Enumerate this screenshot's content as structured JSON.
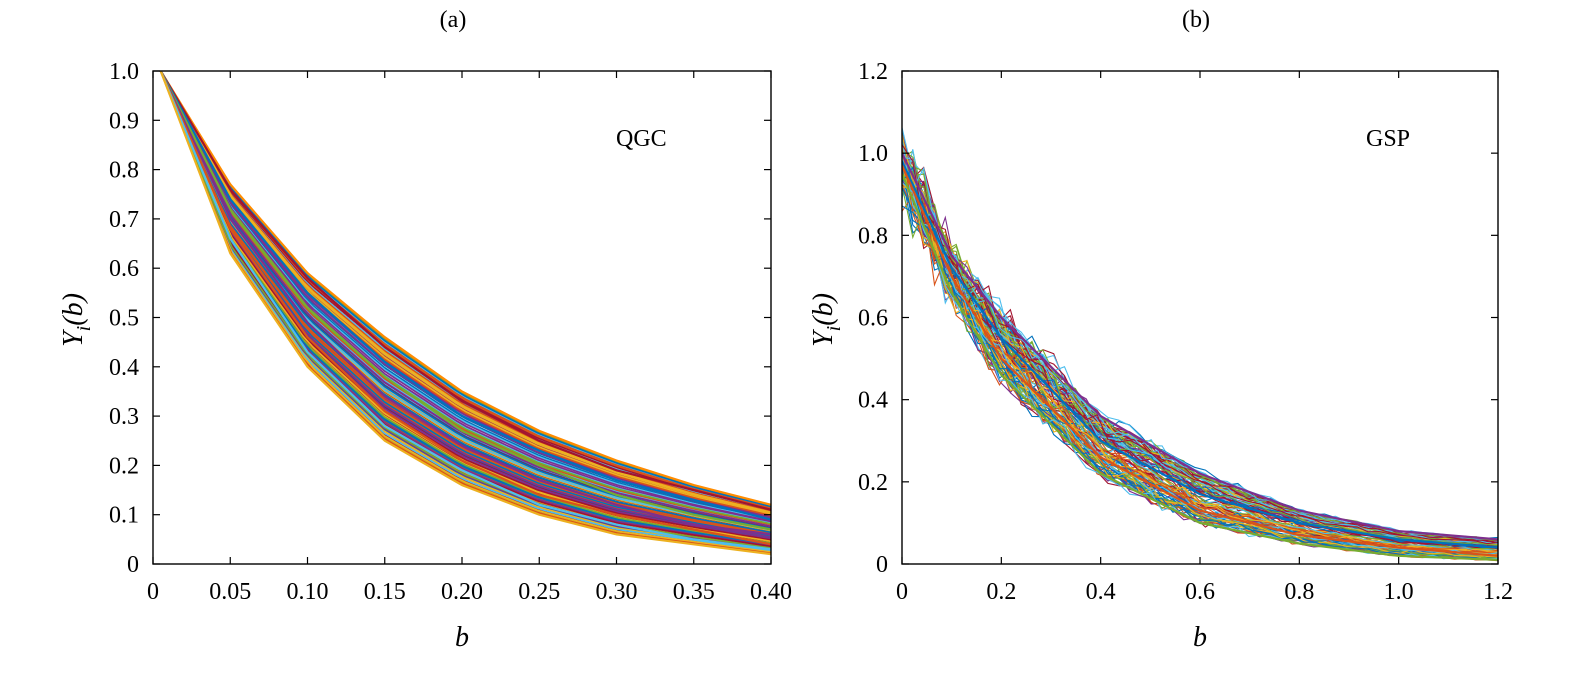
{
  "chart_data": [
    {
      "type": "line",
      "title": "(a)",
      "annotation": "QGC",
      "xlabel": "b",
      "ylabel_main": "Y",
      "ylabel_sub": "i",
      "ylabel_rest": "(b)",
      "xlim": [
        0,
        0.4
      ],
      "ylim": [
        0,
        1.0
      ],
      "x_ticks": [
        0,
        0.05,
        0.1,
        0.15,
        0.2,
        0.25,
        0.3,
        0.35,
        0.4
      ],
      "x_tick_labels": [
        "0",
        "0.05",
        "0.10",
        "0.15",
        "0.20",
        "0.25",
        "0.30",
        "0.35",
        "0.40"
      ],
      "y_ticks": [
        0,
        0.1,
        0.2,
        0.3,
        0.4,
        0.5,
        0.6,
        0.7,
        0.8,
        0.9,
        1.0
      ],
      "y_tick_labels": [
        "0",
        "0.1",
        "0.2",
        "0.3",
        "0.4",
        "0.5",
        "0.6",
        "0.7",
        "0.8",
        "0.9",
        "1.0"
      ],
      "grid": false,
      "curve_family": "exponential decay Y = exp(-b/tau), many realizations",
      "x": [
        0.005,
        0.05,
        0.1,
        0.15,
        0.2,
        0.25,
        0.3,
        0.35,
        0.4
      ],
      "series": [
        {
          "values": [
            1.0,
            0.77,
            0.59,
            0.46,
            0.35,
            0.27,
            0.21,
            0.16,
            0.12
          ],
          "color": "#ff8c00"
        },
        {
          "values": [
            1.0,
            0.76,
            0.58,
            0.44,
            0.33,
            0.25,
            0.19,
            0.15,
            0.11
          ],
          "color": "#a2142f"
        },
        {
          "values": [
            1.0,
            0.74,
            0.55,
            0.41,
            0.3,
            0.23,
            0.17,
            0.13,
            0.09
          ],
          "color": "#0072bd"
        },
        {
          "values": [
            1.0,
            0.72,
            0.52,
            0.38,
            0.27,
            0.2,
            0.14,
            0.1,
            0.07
          ],
          "color": "#77ac30"
        },
        {
          "values": [
            1.0,
            0.7,
            0.49,
            0.34,
            0.24,
            0.17,
            0.12,
            0.08,
            0.06
          ],
          "color": "#7e2f8e"
        },
        {
          "values": [
            1.0,
            0.68,
            0.46,
            0.31,
            0.21,
            0.14,
            0.1,
            0.07,
            0.04
          ],
          "color": "#d95319"
        },
        {
          "values": [
            1.0,
            0.66,
            0.43,
            0.28,
            0.19,
            0.12,
            0.08,
            0.05,
            0.03
          ],
          "color": "#4dbeee"
        },
        {
          "values": [
            1.0,
            0.63,
            0.4,
            0.25,
            0.16,
            0.1,
            0.06,
            0.04,
            0.02
          ],
          "color": "#edb120"
        }
      ],
      "palette": [
        "#0072bd",
        "#d95319",
        "#edb120",
        "#7e2f8e",
        "#77ac30",
        "#4dbeee",
        "#a2142f"
      ]
    },
    {
      "type": "line",
      "title": "(b)",
      "annotation": "GSP",
      "xlabel": "b",
      "ylabel_main": "Y",
      "ylabel_sub": "i",
      "ylabel_rest": "(b)",
      "xlim": [
        0,
        1.2
      ],
      "ylim": [
        0,
        1.2
      ],
      "x_ticks": [
        0,
        0.2,
        0.4,
        0.6,
        0.8,
        1.0,
        1.2
      ],
      "x_tick_labels": [
        "0",
        "0.2",
        "0.4",
        "0.6",
        "0.8",
        "1.0",
        "1.2"
      ],
      "y_ticks": [
        0,
        0.2,
        0.4,
        0.6,
        0.8,
        1.0,
        1.2
      ],
      "y_tick_labels": [
        "0",
        "0.2",
        "0.4",
        "0.6",
        "0.8",
        "1.0",
        "1.2"
      ],
      "grid": false,
      "curve_family": "noisy exponential decay, many realizations",
      "x": [
        0.0,
        0.1,
        0.2,
        0.4,
        0.6,
        0.8,
        1.0,
        1.2
      ],
      "series": [
        {
          "values": [
            1.0,
            0.75,
            0.6,
            0.36,
            0.22,
            0.13,
            0.08,
            0.06
          ],
          "color": "#7e2f8e"
        },
        {
          "values": [
            0.98,
            0.72,
            0.55,
            0.3,
            0.17,
            0.1,
            0.06,
            0.04
          ],
          "color": "#0072bd"
        },
        {
          "values": [
            0.97,
            0.7,
            0.5,
            0.26,
            0.13,
            0.07,
            0.04,
            0.02
          ],
          "color": "#d95319"
        },
        {
          "values": [
            0.95,
            0.66,
            0.46,
            0.22,
            0.1,
            0.05,
            0.02,
            0.01
          ],
          "color": "#77ac30"
        }
      ],
      "palette": [
        "#0072bd",
        "#d95319",
        "#edb120",
        "#7e2f8e",
        "#77ac30",
        "#4dbeee",
        "#a2142f"
      ]
    }
  ]
}
